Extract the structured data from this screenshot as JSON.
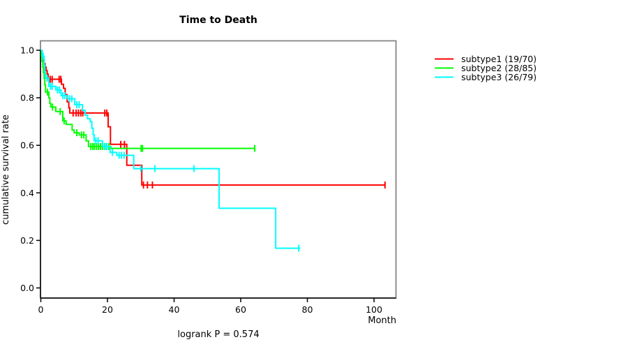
{
  "chart_data": {
    "type": "line",
    "variant": "kaplan-meier-step",
    "title": "Time to Death",
    "xlabel": "Month",
    "ylabel": "cumulative survival rate",
    "annotation": "logrank P = 0.574",
    "x_ticks": [
      0,
      20,
      40,
      60,
      80,
      100
    ],
    "y_ticks": [
      0.0,
      0.2,
      0.4,
      0.6,
      0.8,
      1.0
    ],
    "xlim": [
      0,
      106.5
    ],
    "ylim": [
      0.0,
      1.0
    ],
    "grid": "off",
    "legend_position": "right-outside",
    "frame_color": "#848484",
    "axis_color": "#000000",
    "series": [
      {
        "name": "subtype1 (19/70)",
        "color": "#FF0000",
        "steps": [
          [
            0,
            1.0
          ],
          [
            0.4,
            0.971
          ],
          [
            0.8,
            0.957
          ],
          [
            1.0,
            0.943
          ],
          [
            1.3,
            0.929
          ],
          [
            1.6,
            0.914
          ],
          [
            1.9,
            0.9
          ],
          [
            2.2,
            0.878
          ],
          [
            6.2,
            0.857
          ],
          [
            6.8,
            0.84
          ],
          [
            7.3,
            0.813
          ],
          [
            7.9,
            0.783
          ],
          [
            8.4,
            0.758
          ],
          [
            8.7,
            0.736
          ],
          [
            20.2,
            0.678
          ],
          [
            20.9,
            0.604
          ],
          [
            25.8,
            0.516
          ],
          [
            30.3,
            0.433
          ]
        ],
        "censors": [
          2.8,
          3.4,
          5.5,
          6.0,
          9.7,
          10.6,
          11.3,
          12.0,
          12.6,
          19.2,
          19.8,
          24.0,
          25.1,
          30.8,
          32.0,
          33.5,
          103.3
        ],
        "end": 103.3
      },
      {
        "name": "subtype2 (28/85)",
        "color": "#00FF00",
        "steps": [
          [
            0,
            1.0
          ],
          [
            0.2,
            0.976
          ],
          [
            0.4,
            0.953
          ],
          [
            0.6,
            0.929
          ],
          [
            0.8,
            0.906
          ],
          [
            1.0,
            0.882
          ],
          [
            1.2,
            0.855
          ],
          [
            1.4,
            0.824
          ],
          [
            2.4,
            0.8
          ],
          [
            2.7,
            0.776
          ],
          [
            3.0,
            0.761
          ],
          [
            4.5,
            0.742
          ],
          [
            6.6,
            0.703
          ],
          [
            7.6,
            0.688
          ],
          [
            9.4,
            0.664
          ],
          [
            10.0,
            0.653
          ],
          [
            11.5,
            0.644
          ],
          [
            13.6,
            0.619
          ],
          [
            14.3,
            0.595
          ],
          [
            21.0,
            0.587
          ]
        ],
        "censors": [
          2.0,
          3.5,
          5.8,
          7.0,
          10.8,
          12.2,
          12.9,
          15.0,
          15.6,
          16.1,
          16.7,
          17.3,
          17.9,
          18.5,
          19.1,
          19.7,
          20.4,
          30.1,
          30.5,
          64.2
        ],
        "end": 64.2
      },
      {
        "name": "subtype3 (26/79)",
        "color": "#00FFFF",
        "steps": [
          [
            0,
            1.0
          ],
          [
            0.4,
            0.975
          ],
          [
            1.0,
            0.937
          ],
          [
            1.2,
            0.91
          ],
          [
            1.4,
            0.882
          ],
          [
            2.4,
            0.848
          ],
          [
            4.5,
            0.833
          ],
          [
            6.1,
            0.809
          ],
          [
            8.0,
            0.796
          ],
          [
            10.2,
            0.771
          ],
          [
            12.5,
            0.747
          ],
          [
            13.3,
            0.727
          ],
          [
            14.0,
            0.712
          ],
          [
            14.8,
            0.7
          ],
          [
            15.3,
            0.672
          ],
          [
            15.7,
            0.645
          ],
          [
            16.0,
            0.619
          ],
          [
            18.5,
            0.595
          ],
          [
            20.8,
            0.57
          ],
          [
            22.8,
            0.558
          ],
          [
            27.9,
            0.502
          ],
          [
            53.5,
            0.335
          ],
          [
            70.5,
            0.167
          ]
        ],
        "censors": [
          0.7,
          1.9,
          2.9,
          3.4,
          5.0,
          5.6,
          6.6,
          7.2,
          8.6,
          9.3,
          10.8,
          11.5,
          16.5,
          17.2,
          19.2,
          19.8,
          21.5,
          23.5,
          24.2,
          25.0,
          30.0,
          34.2,
          46.0,
          77.4
        ],
        "end": 77.8
      }
    ]
  }
}
